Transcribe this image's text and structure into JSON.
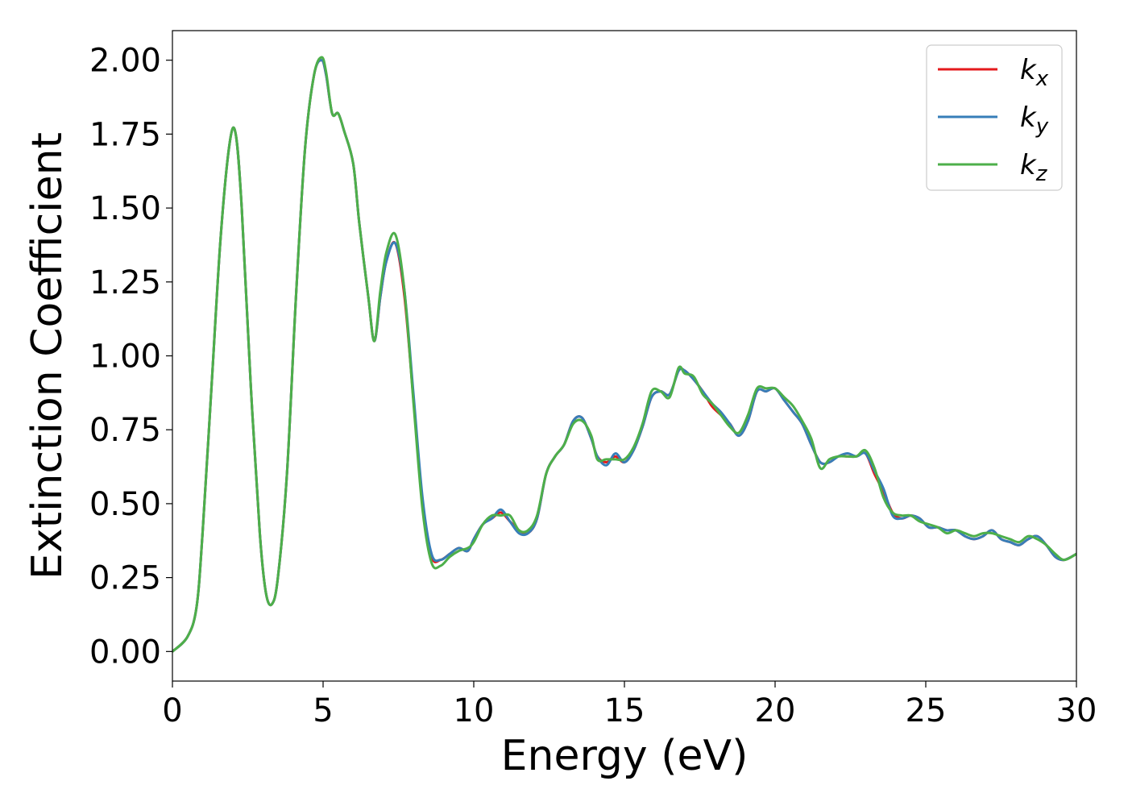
{
  "chart_data": {
    "type": "line",
    "title": "",
    "xlabel": "Energy (eV)",
    "ylabel": "Extinction Coefficient",
    "xlim": [
      0,
      30
    ],
    "ylim": [
      -0.1,
      2.1
    ],
    "xticks": [
      0,
      5,
      10,
      15,
      20,
      25,
      30
    ],
    "xtick_labels": [
      "0",
      "5",
      "10",
      "15",
      "20",
      "25",
      "30"
    ],
    "yticks": [
      0,
      0.25,
      0.5,
      0.75,
      1.0,
      1.25,
      1.5,
      1.75,
      2.0
    ],
    "ytick_labels": [
      "0.00",
      "0.25",
      "0.50",
      "0.75",
      "1.00",
      "1.25",
      "1.50",
      "1.75",
      "2.00"
    ],
    "grid": false,
    "legend_position": "top-right",
    "series": [
      {
        "name": "k",
        "subscript": "x",
        "color": "#e41a1c",
        "x": [
          0,
          0.5,
          0.8,
          1.0,
          1.3,
          1.6,
          1.9,
          2.1,
          2.3,
          2.6,
          2.9,
          3.1,
          3.3,
          3.5,
          3.8,
          4.1,
          4.4,
          4.7,
          4.95,
          5.1,
          5.3,
          5.5,
          5.7,
          6.0,
          6.2,
          6.5,
          6.7,
          6.9,
          7.1,
          7.4,
          7.7,
          8.0,
          8.3,
          8.6,
          8.9,
          9.2,
          9.5,
          9.8,
          10.0,
          10.3,
          10.6,
          10.9,
          11.2,
          11.5,
          11.8,
          12.1,
          12.4,
          12.7,
          13.0,
          13.3,
          13.6,
          13.9,
          14.1,
          14.4,
          14.7,
          15.0,
          15.3,
          15.6,
          15.9,
          16.2,
          16.5,
          16.8,
          17.0,
          17.3,
          17.6,
          17.9,
          18.2,
          18.5,
          18.8,
          19.1,
          19.4,
          19.7,
          20.0,
          20.3,
          20.6,
          20.9,
          21.2,
          21.5,
          21.8,
          22.1,
          22.4,
          22.7,
          23.0,
          23.3,
          23.6,
          23.9,
          24.2,
          24.5,
          24.8,
          25.1,
          25.4,
          25.7,
          26.0,
          26.3,
          26.6,
          26.9,
          27.2,
          27.5,
          27.8,
          28.1,
          28.4,
          28.7,
          29.0,
          29.3,
          29.6,
          30.0
        ],
        "y": [
          0,
          0.05,
          0.15,
          0.4,
          0.9,
          1.4,
          1.72,
          1.75,
          1.5,
          0.9,
          0.4,
          0.2,
          0.16,
          0.25,
          0.6,
          1.2,
          1.7,
          1.95,
          2.0,
          1.95,
          1.82,
          1.82,
          1.76,
          1.65,
          1.45,
          1.2,
          1.05,
          1.2,
          1.32,
          1.38,
          1.2,
          0.85,
          0.5,
          0.32,
          0.31,
          0.33,
          0.35,
          0.34,
          0.38,
          0.43,
          0.45,
          0.47,
          0.44,
          0.41,
          0.4,
          0.45,
          0.6,
          0.66,
          0.7,
          0.78,
          0.79,
          0.72,
          0.66,
          0.64,
          0.66,
          0.64,
          0.68,
          0.76,
          0.86,
          0.88,
          0.87,
          0.95,
          0.95,
          0.92,
          0.88,
          0.83,
          0.8,
          0.77,
          0.73,
          0.78,
          0.88,
          0.88,
          0.89,
          0.85,
          0.81,
          0.77,
          0.7,
          0.64,
          0.64,
          0.66,
          0.66,
          0.66,
          0.67,
          0.6,
          0.54,
          0.47,
          0.45,
          0.46,
          0.45,
          0.42,
          0.42,
          0.41,
          0.41,
          0.39,
          0.38,
          0.39,
          0.41,
          0.38,
          0.37,
          0.36,
          0.38,
          0.39,
          0.36,
          0.32,
          0.31,
          0.33
        ]
      },
      {
        "name": "k",
        "subscript": "y",
        "color": "#377eb8",
        "x": [
          0,
          0.5,
          0.8,
          1.0,
          1.3,
          1.6,
          1.9,
          2.1,
          2.3,
          2.6,
          2.9,
          3.1,
          3.3,
          3.5,
          3.8,
          4.1,
          4.4,
          4.7,
          4.95,
          5.1,
          5.3,
          5.5,
          5.7,
          6.0,
          6.2,
          6.5,
          6.7,
          6.9,
          7.1,
          7.4,
          7.7,
          8.0,
          8.3,
          8.6,
          8.9,
          9.2,
          9.5,
          9.8,
          10.0,
          10.3,
          10.6,
          10.9,
          11.2,
          11.5,
          11.8,
          12.1,
          12.4,
          12.7,
          13.0,
          13.3,
          13.6,
          13.9,
          14.1,
          14.4,
          14.7,
          15.0,
          15.3,
          15.6,
          15.9,
          16.2,
          16.5,
          16.8,
          17.0,
          17.3,
          17.6,
          17.9,
          18.2,
          18.5,
          18.8,
          19.1,
          19.4,
          19.7,
          20.0,
          20.3,
          20.6,
          20.9,
          21.2,
          21.5,
          21.8,
          22.1,
          22.4,
          22.7,
          23.0,
          23.3,
          23.6,
          23.9,
          24.2,
          24.5,
          24.8,
          25.1,
          25.4,
          25.7,
          26.0,
          26.3,
          26.6,
          26.9,
          27.2,
          27.5,
          27.8,
          28.1,
          28.4,
          28.7,
          29.0,
          29.3,
          29.6,
          30.0
        ],
        "y": [
          0,
          0.05,
          0.15,
          0.4,
          0.9,
          1.4,
          1.72,
          1.75,
          1.5,
          0.9,
          0.4,
          0.2,
          0.16,
          0.25,
          0.6,
          1.2,
          1.7,
          1.95,
          2.0,
          1.95,
          1.82,
          1.82,
          1.76,
          1.65,
          1.45,
          1.2,
          1.05,
          1.2,
          1.32,
          1.38,
          1.22,
          0.87,
          0.52,
          0.33,
          0.31,
          0.33,
          0.35,
          0.34,
          0.38,
          0.43,
          0.45,
          0.48,
          0.44,
          0.4,
          0.4,
          0.45,
          0.6,
          0.66,
          0.7,
          0.78,
          0.79,
          0.72,
          0.66,
          0.63,
          0.67,
          0.64,
          0.68,
          0.76,
          0.86,
          0.88,
          0.87,
          0.95,
          0.95,
          0.92,
          0.88,
          0.84,
          0.81,
          0.77,
          0.73,
          0.78,
          0.88,
          0.88,
          0.89,
          0.85,
          0.81,
          0.77,
          0.7,
          0.64,
          0.64,
          0.66,
          0.67,
          0.66,
          0.67,
          0.61,
          0.55,
          0.46,
          0.45,
          0.46,
          0.45,
          0.42,
          0.42,
          0.41,
          0.41,
          0.39,
          0.38,
          0.39,
          0.41,
          0.38,
          0.37,
          0.36,
          0.38,
          0.39,
          0.36,
          0.32,
          0.31,
          0.33
        ]
      },
      {
        "name": "k",
        "subscript": "z",
        "color": "#4daf4a",
        "x": [
          0,
          0.5,
          0.8,
          1.0,
          1.3,
          1.6,
          1.9,
          2.1,
          2.3,
          2.6,
          2.9,
          3.1,
          3.3,
          3.5,
          3.8,
          4.1,
          4.4,
          4.7,
          4.95,
          5.1,
          5.3,
          5.5,
          5.7,
          6.0,
          6.2,
          6.5,
          6.7,
          6.9,
          7.1,
          7.4,
          7.7,
          8.0,
          8.3,
          8.6,
          8.9,
          9.2,
          9.5,
          9.8,
          10.0,
          10.3,
          10.6,
          10.9,
          11.2,
          11.5,
          11.8,
          12.1,
          12.4,
          12.7,
          13.0,
          13.3,
          13.6,
          13.9,
          14.1,
          14.4,
          14.7,
          15.0,
          15.3,
          15.6,
          15.9,
          16.2,
          16.5,
          16.8,
          17.0,
          17.3,
          17.6,
          17.9,
          18.2,
          18.5,
          18.8,
          19.1,
          19.4,
          19.7,
          20.0,
          20.3,
          20.6,
          20.9,
          21.2,
          21.5,
          21.8,
          22.1,
          22.4,
          22.7,
          23.0,
          23.3,
          23.6,
          23.9,
          24.2,
          24.5,
          24.8,
          25.1,
          25.4,
          25.7,
          26.0,
          26.3,
          26.6,
          26.9,
          27.2,
          27.5,
          27.8,
          28.1,
          28.4,
          28.7,
          29.0,
          29.3,
          29.6,
          30.0
        ],
        "y": [
          0,
          0.05,
          0.15,
          0.4,
          0.9,
          1.4,
          1.72,
          1.75,
          1.5,
          0.9,
          0.4,
          0.2,
          0.16,
          0.25,
          0.6,
          1.2,
          1.7,
          1.95,
          2.01,
          1.96,
          1.82,
          1.82,
          1.76,
          1.65,
          1.45,
          1.2,
          1.05,
          1.22,
          1.35,
          1.41,
          1.22,
          0.84,
          0.48,
          0.3,
          0.29,
          0.32,
          0.34,
          0.35,
          0.37,
          0.43,
          0.46,
          0.46,
          0.46,
          0.41,
          0.41,
          0.46,
          0.6,
          0.66,
          0.7,
          0.77,
          0.78,
          0.73,
          0.65,
          0.65,
          0.65,
          0.65,
          0.69,
          0.77,
          0.88,
          0.88,
          0.86,
          0.96,
          0.94,
          0.93,
          0.87,
          0.84,
          0.8,
          0.76,
          0.74,
          0.8,
          0.89,
          0.89,
          0.89,
          0.86,
          0.83,
          0.78,
          0.72,
          0.62,
          0.65,
          0.66,
          0.66,
          0.66,
          0.68,
          0.62,
          0.52,
          0.47,
          0.46,
          0.46,
          0.44,
          0.43,
          0.42,
          0.4,
          0.41,
          0.4,
          0.39,
          0.4,
          0.4,
          0.39,
          0.38,
          0.37,
          0.39,
          0.38,
          0.36,
          0.33,
          0.31,
          0.33
        ]
      }
    ]
  }
}
